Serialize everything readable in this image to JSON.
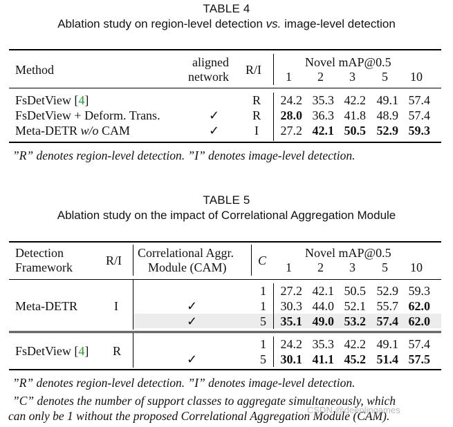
{
  "table4": {
    "label": "TABLE 4",
    "title_pre": "Ablation study on region-level detection ",
    "title_vs": "vs.",
    "title_post": " image-level detection",
    "header": {
      "method": "Method",
      "aligned1": "aligned",
      "aligned2": "network",
      "ri": "R/I",
      "novel": "Novel mAP@0.5",
      "shots": [
        "1",
        "2",
        "3",
        "5",
        "10"
      ]
    },
    "rows": [
      {
        "method_pre": "FsDetView [",
        "ref": "4",
        "method_post": "]",
        "aligned": "",
        "ri": "R",
        "values": [
          "24.2",
          "35.3",
          "42.2",
          "49.1",
          "57.4"
        ],
        "bold": [
          false,
          false,
          false,
          false,
          false
        ]
      },
      {
        "method": "FsDetView + Deform. Trans.",
        "aligned": "✓",
        "ri": "R",
        "values": [
          "28.0",
          "36.3",
          "41.8",
          "48.9",
          "57.4"
        ],
        "bold": [
          true,
          false,
          false,
          false,
          false
        ]
      },
      {
        "method_pre": "Meta-DETR ",
        "method_ital": "w/o",
        "method_post": " CAM",
        "aligned": "✓",
        "ri": "I",
        "values": [
          "27.2",
          "42.1",
          "50.5",
          "52.9",
          "59.3"
        ],
        "bold": [
          false,
          true,
          true,
          true,
          true
        ]
      }
    ],
    "note": "”R” denotes region-level detection. ”I” denotes image-level detection."
  },
  "table5": {
    "label": "TABLE 5",
    "title": "Ablation study on the impact of Correlational Aggregation Module",
    "header": {
      "framework1": "Detection",
      "framework2": "Framework",
      "ri": "R/I",
      "cam1": "Correlational Aggr.",
      "cam2": "Module (CAM)",
      "c": "C",
      "novel": "Novel mAP@0.5",
      "shots": [
        "1",
        "2",
        "3",
        "5",
        "10"
      ]
    },
    "groups": [
      {
        "framework": "Meta-DETR",
        "ri": "I",
        "rows": [
          {
            "cam": "",
            "c": "1",
            "values": [
              "27.2",
              "42.1",
              "50.5",
              "52.9",
              "59.3"
            ],
            "bold": [
              false,
              false,
              false,
              false,
              false
            ],
            "highlight": false
          },
          {
            "cam": "✓",
            "c": "1",
            "values": [
              "30.3",
              "44.0",
              "52.1",
              "55.7",
              "62.0"
            ],
            "bold": [
              false,
              false,
              false,
              false,
              true
            ],
            "highlight": false
          },
          {
            "cam": "✓",
            "c": "5",
            "values": [
              "35.1",
              "49.0",
              "53.2",
              "57.4",
              "62.0"
            ],
            "bold": [
              true,
              true,
              true,
              true,
              true
            ],
            "highlight": true
          }
        ]
      },
      {
        "framework_pre": "FsDetView [",
        "ref": "4",
        "framework_post": "]",
        "ri": "R",
        "rows": [
          {
            "cam": "",
            "c": "1",
            "values": [
              "24.2",
              "35.3",
              "42.2",
              "49.1",
              "57.4"
            ],
            "bold": [
              false,
              false,
              false,
              false,
              false
            ],
            "highlight": false
          },
          {
            "cam": "✓",
            "c": "5",
            "values": [
              "30.1",
              "41.1",
              "45.2",
              "51.4",
              "57.5"
            ],
            "bold": [
              true,
              true,
              true,
              true,
              true
            ],
            "highlight": false
          }
        ]
      }
    ],
    "note1": "”R” denotes region-level detection. ”I” denotes image-level detection.",
    "note2": "”C” denotes the number of support classes to aggregate simultaneously, which",
    "note3": "can only be 1 without the proposed Correlational Aggregation Module (CAM)."
  },
  "watermark": "CSDN @deeplingames",
  "colors": {
    "ref_link": "#1fa51f",
    "highlight": "#ececec"
  }
}
